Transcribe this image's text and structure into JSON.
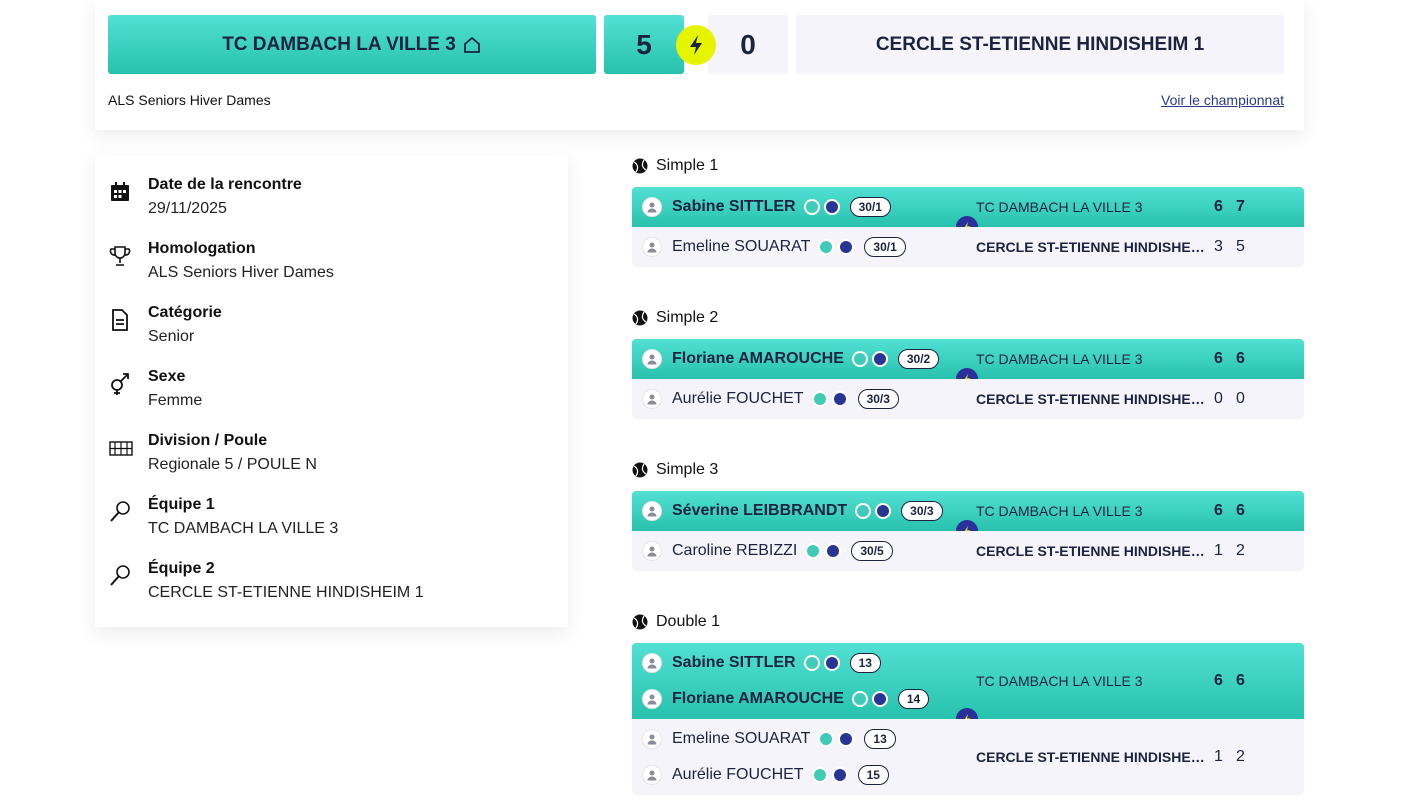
{
  "header": {
    "home_team": "TC DAMBACH LA VILLE 3",
    "home_score": 5,
    "away_score": 0,
    "away_team": "CERCLE ST-ETIENNE HINDISHEIM 1",
    "competition": "ALS Seniors Hiver Dames",
    "link": "Voir le championnat"
  },
  "details": [
    {
      "label": "Date de la rencontre",
      "value": "29/11/2025"
    },
    {
      "label": "Homologation",
      "value": "ALS Seniors Hiver Dames"
    },
    {
      "label": "Catégorie",
      "value": "Senior"
    },
    {
      "label": "Sexe",
      "value": "Femme"
    },
    {
      "label": "Division / Poule",
      "value": "Regionale 5 / POULE N"
    },
    {
      "label": "Équipe 1",
      "value": "TC DAMBACH LA VILLE 3"
    },
    {
      "label": "Équipe 2",
      "value": "CERCLE ST-ETIENNE HINDISHEIM 1"
    }
  ],
  "matches": [
    {
      "title": "Simple 1",
      "winner": {
        "team": "TC DAMBACH LA VILLE 3",
        "players": [
          {
            "name": "Sabine SITTLER",
            "rank": "30/1"
          }
        ],
        "sets": [
          6,
          7
        ]
      },
      "loser": {
        "team": "CERCLE ST-ETIENNE HINDISHEIM 1",
        "players": [
          {
            "name": "Emeline SOUARAT",
            "rank": "30/1"
          }
        ],
        "sets": [
          3,
          5
        ]
      }
    },
    {
      "title": "Simple 2",
      "winner": {
        "team": "TC DAMBACH LA VILLE 3",
        "players": [
          {
            "name": "Floriane AMAROUCHE",
            "rank": "30/2"
          }
        ],
        "sets": [
          6,
          6
        ]
      },
      "loser": {
        "team": "CERCLE ST-ETIENNE HINDISHEIM 1",
        "players": [
          {
            "name": "Aurélie FOUCHET",
            "rank": "30/3"
          }
        ],
        "sets": [
          0,
          0
        ]
      }
    },
    {
      "title": "Simple 3",
      "winner": {
        "team": "TC DAMBACH LA VILLE 3",
        "players": [
          {
            "name": "Séverine LEIBBRANDT",
            "rank": "30/3"
          }
        ],
        "sets": [
          6,
          6
        ]
      },
      "loser": {
        "team": "CERCLE ST-ETIENNE HINDISHEIM 1",
        "players": [
          {
            "name": "Caroline REBIZZI",
            "rank": "30/5"
          }
        ],
        "sets": [
          1,
          2
        ]
      }
    },
    {
      "title": "Double 1",
      "winner": {
        "team": "TC DAMBACH LA VILLE 3",
        "players": [
          {
            "name": "Sabine SITTLER",
            "rank": "13"
          },
          {
            "name": "Floriane AMAROUCHE",
            "rank": "14"
          }
        ],
        "sets": [
          6,
          6
        ]
      },
      "loser": {
        "team": "CERCLE ST-ETIENNE HINDISHEIM 1",
        "players": [
          {
            "name": "Emeline SOUARAT",
            "rank": "13"
          },
          {
            "name": "Aurélie FOUCHET",
            "rank": "15"
          }
        ],
        "sets": [
          1,
          2
        ]
      }
    }
  ]
}
